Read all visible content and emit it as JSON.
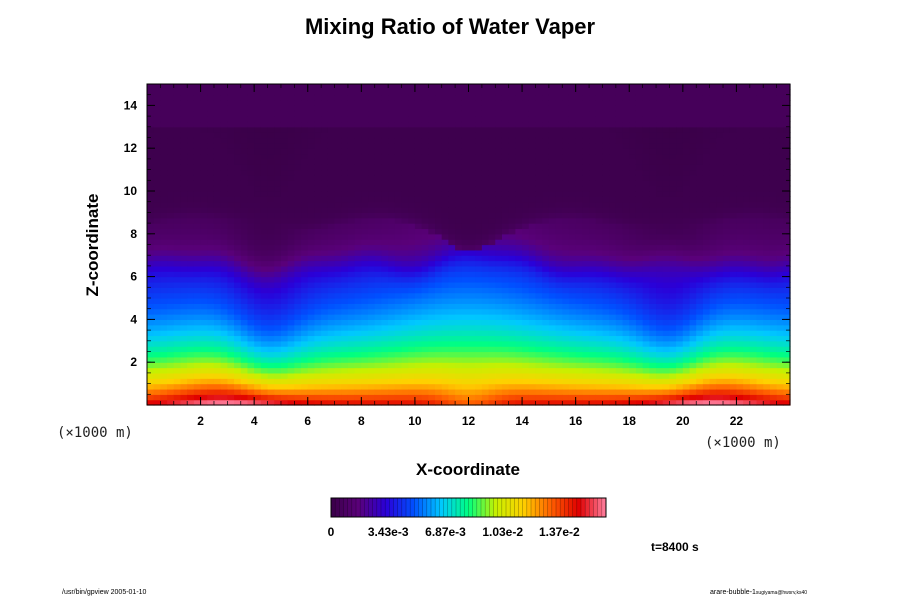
{
  "chart_data": {
    "type": "heatmap",
    "title": "Mixing Ratio of Water Vaper",
    "xlabel": "X-coordinate",
    "ylabel": "Z-coordinate",
    "x_unit": "(×1000 m)",
    "y_unit": "(×1000 m)",
    "xlim": [
      0,
      24
    ],
    "ylim": [
      0,
      15
    ],
    "x_ticks": [
      2,
      4,
      6,
      8,
      10,
      12,
      14,
      16,
      18,
      20,
      22
    ],
    "y_ticks": [
      2,
      4,
      6,
      8,
      10,
      12,
      14
    ],
    "colorbar": {
      "labels": [
        "0",
        "3.43e-3",
        "6.87e-3",
        "1.03e-2",
        "1.37e-2"
      ],
      "values": [
        0,
        0.00343,
        0.00687,
        0.0103,
        0.0137
      ],
      "max": 0.0165
    },
    "time_label": "t=8400 s",
    "field_description": {
      "surface_max_value": 0.0148,
      "surface_max_at_x": [
        3.0,
        21.0
      ],
      "dry_upper_layer_value": 0.0002,
      "dry_layer_z_range": [
        8.5,
        13.0
      ],
      "top_layer_value": 0.0006
    },
    "colors": {
      "colormap": [
        "#3a0048",
        "#5a007a",
        "#2a00d8",
        "#0050ff",
        "#00c8ff",
        "#00ff80",
        "#c8f000",
        "#ffd000",
        "#ff6000",
        "#e00000",
        "#ff80a0"
      ]
    }
  },
  "footer": {
    "left": "/usr/bin/gpview 2005-01-10",
    "right_main": "arare-bubble-1",
    "right_sub": "sugiyama@hwsrv,ks40"
  }
}
